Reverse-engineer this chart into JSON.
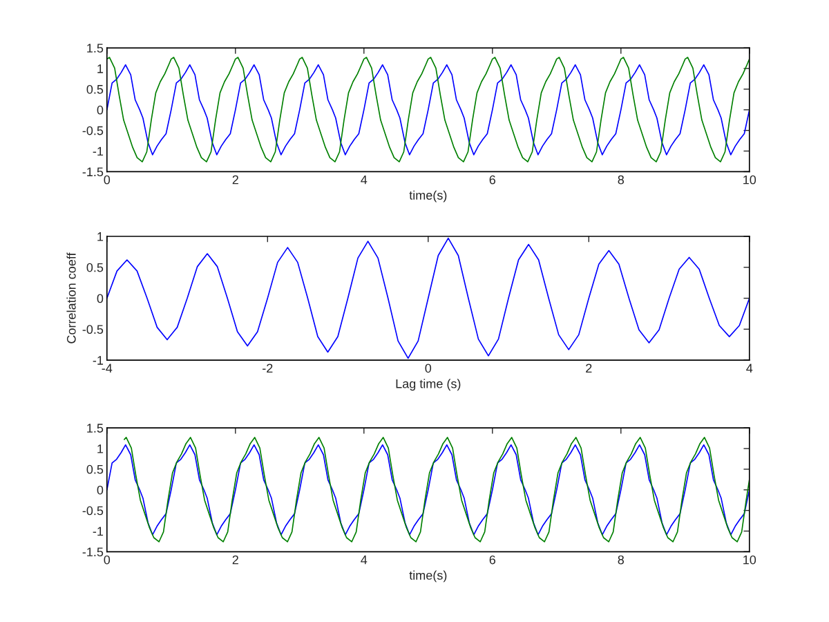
{
  "chart_data": [
    {
      "type": "line",
      "xlabel": "time(s)",
      "xlim": [
        0,
        10
      ],
      "ylim": [
        -1.5,
        1.5
      ],
      "xticks": [
        0,
        2,
        4,
        6,
        8,
        10
      ],
      "yticks": [
        -1.5,
        -1,
        -0.5,
        0,
        0.5,
        1,
        1.5
      ],
      "series": [
        {
          "color": "#0000ff",
          "x": [
            0,
            0.08,
            0.15,
            0.22,
            0.29,
            0.37,
            0.44,
            0.51,
            0.56,
            0.64,
            0.71,
            0.78,
            0.85,
            0.92,
            1,
            1.08,
            1.15,
            1.22,
            1.29,
            1.37,
            1.44,
            1.51,
            1.56,
            1.64,
            1.71,
            1.78,
            1.85,
            1.92,
            2,
            2.08,
            2.15,
            2.22,
            2.29,
            2.37,
            2.44,
            2.51,
            2.56,
            2.64,
            2.71,
            2.78,
            2.85,
            2.92,
            3,
            3.08,
            3.15,
            3.22,
            3.29,
            3.37,
            3.44,
            3.51,
            3.56,
            3.64,
            3.71,
            3.78,
            3.85,
            3.92,
            4,
            4.08,
            4.15,
            4.22,
            4.29,
            4.37,
            4.44,
            4.51,
            4.56,
            4.64,
            4.71,
            4.78,
            4.85,
            4.92,
            5,
            5.08,
            5.15,
            5.22,
            5.29,
            5.37,
            5.44,
            5.51,
            5.56,
            5.64,
            5.71,
            5.78,
            5.85,
            5.92,
            6,
            6.08,
            6.15,
            6.22,
            6.29,
            6.37,
            6.44,
            6.51,
            6.56,
            6.64,
            6.71,
            6.78,
            6.85,
            6.92,
            7,
            7.08,
            7.15,
            7.22,
            7.29,
            7.37,
            7.44,
            7.51,
            7.56,
            7.64,
            7.71,
            7.78,
            7.85,
            7.92,
            8,
            8.08,
            8.15,
            8.22,
            8.29,
            8.37,
            8.44,
            8.51,
            8.56,
            8.64,
            8.71,
            8.78,
            8.85,
            8.92,
            9,
            9.08,
            9.15,
            9.22,
            9.29,
            9.37,
            9.44,
            9.51,
            9.56,
            9.64,
            9.71,
            9.78,
            9.85,
            9.92,
            10
          ],
          "values": [
            0,
            0.65,
            0.74,
            0.9,
            1.09,
            0.85,
            0.24,
            0,
            -0.2,
            -0.8,
            -1.09,
            -0.88,
            -0.72,
            -0.58,
            0,
            0.65,
            0.74,
            0.9,
            1.09,
            0.85,
            0.24,
            0,
            -0.2,
            -0.8,
            -1.09,
            -0.88,
            -0.72,
            -0.58,
            0,
            0.65,
            0.74,
            0.9,
            1.09,
            0.85,
            0.24,
            0,
            -0.2,
            -0.8,
            -1.09,
            -0.88,
            -0.72,
            -0.58,
            0,
            0.65,
            0.74,
            0.9,
            1.09,
            0.85,
            0.24,
            0,
            -0.2,
            -0.8,
            -1.09,
            -0.88,
            -0.72,
            -0.58,
            0,
            0.65,
            0.74,
            0.9,
            1.09,
            0.85,
            0.24,
            0,
            -0.2,
            -0.8,
            -1.09,
            -0.88,
            -0.72,
            -0.58,
            0,
            0.65,
            0.74,
            0.9,
            1.09,
            0.85,
            0.24,
            0,
            -0.2,
            -0.8,
            -1.09,
            -0.88,
            -0.72,
            -0.58,
            0,
            0.65,
            0.74,
            0.9,
            1.09,
            0.85,
            0.24,
            0,
            -0.2,
            -0.8,
            -1.09,
            -0.88,
            -0.72,
            -0.58,
            0,
            0.65,
            0.74,
            0.9,
            1.09,
            0.85,
            0.24,
            0,
            -0.2,
            -0.8,
            -1.09,
            -0.88,
            -0.72,
            -0.58,
            0,
            0.65,
            0.74,
            0.9,
            1.09,
            0.85,
            0.24,
            0,
            -0.2,
            -0.8,
            -1.09,
            -0.88,
            -0.72,
            -0.58,
            0,
            0.65,
            0.74,
            0.9,
            1.09,
            0.85,
            0.24,
            0,
            -0.2,
            -0.8,
            -1.09,
            -0.88,
            -0.72,
            -0.58,
            0
          ]
        },
        {
          "color": "#008000",
          "x": [
            0,
            0.04,
            0.12,
            0.19,
            0.26,
            0.33,
            0.4,
            0.47,
            0.55,
            0.62,
            0.69,
            0.76,
            0.83,
            0.9,
            0.97,
            1,
            1.04,
            1.12,
            1.19,
            1.26,
            1.33,
            1.4,
            1.47,
            1.55,
            1.62,
            1.69,
            1.76,
            1.83,
            1.9,
            1.97,
            2,
            2.04,
            2.12,
            2.19,
            2.26,
            2.33,
            2.4,
            2.47,
            2.55,
            2.62,
            2.69,
            2.76,
            2.83,
            2.9,
            2.97,
            3,
            3.04,
            3.12,
            3.19,
            3.26,
            3.33,
            3.4,
            3.47,
            3.55,
            3.62,
            3.69,
            3.76,
            3.83,
            3.9,
            3.97,
            4,
            4.04,
            4.12,
            4.19,
            4.26,
            4.33,
            4.4,
            4.47,
            4.55,
            4.62,
            4.69,
            4.76,
            4.83,
            4.9,
            4.97,
            5,
            5.04,
            5.12,
            5.19,
            5.26,
            5.33,
            5.4,
            5.47,
            5.55,
            5.62,
            5.69,
            5.76,
            5.83,
            5.9,
            5.97,
            6,
            6.04,
            6.12,
            6.19,
            6.26,
            6.33,
            6.4,
            6.47,
            6.55,
            6.62,
            6.69,
            6.76,
            6.83,
            6.9,
            6.97,
            7,
            7.04,
            7.12,
            7.19,
            7.26,
            7.33,
            7.4,
            7.47,
            7.55,
            7.62,
            7.69,
            7.76,
            7.83,
            7.9,
            7.97,
            8,
            8.04,
            8.12,
            8.19,
            8.26,
            8.33,
            8.4,
            8.47,
            8.55,
            8.62,
            8.69,
            8.76,
            8.83,
            8.9,
            8.97,
            9,
            9.04,
            9.12,
            9.19,
            9.26,
            9.33,
            9.4,
            9.47,
            9.55,
            9.62,
            9.69,
            9.76,
            9.83,
            9.9,
            9.97,
            10
          ],
          "values": [
            1.23,
            1.27,
            1.01,
            0.35,
            -0.25,
            -0.58,
            -0.91,
            -1.16,
            -1.26,
            -1.02,
            -0.25,
            0.41,
            0.68,
            0.87,
            1.12,
            1.23,
            1.27,
            1.01,
            0.35,
            -0.25,
            -0.58,
            -0.91,
            -1.16,
            -1.26,
            -1.02,
            -0.25,
            0.41,
            0.68,
            0.87,
            1.12,
            1.23,
            1.27,
            1.01,
            0.35,
            -0.25,
            -0.58,
            -0.91,
            -1.16,
            -1.26,
            -1.02,
            -0.25,
            0.41,
            0.68,
            0.87,
            1.12,
            1.23,
            1.27,
            1.01,
            0.35,
            -0.25,
            -0.58,
            -0.91,
            -1.16,
            -1.26,
            -1.02,
            -0.25,
            0.41,
            0.68,
            0.87,
            1.12,
            1.23,
            1.27,
            1.01,
            0.35,
            -0.25,
            -0.58,
            -0.91,
            -1.16,
            -1.26,
            -1.02,
            -0.25,
            0.41,
            0.68,
            0.87,
            1.12,
            1.23,
            1.27,
            1.01,
            0.35,
            -0.25,
            -0.58,
            -0.91,
            -1.16,
            -1.26,
            -1.02,
            -0.25,
            0.41,
            0.68,
            0.87,
            1.12,
            1.23,
            1.27,
            1.01,
            0.35,
            -0.25,
            -0.58,
            -0.91,
            -1.16,
            -1.26,
            -1.02,
            -0.25,
            0.41,
            0.68,
            0.87,
            1.12,
            1.23,
            1.27,
            1.01,
            0.35,
            -0.25,
            -0.58,
            -0.91,
            -1.16,
            -1.26,
            -1.02,
            -0.25,
            0.41,
            0.68,
            0.87,
            1.12,
            1.23,
            1.27,
            1.01,
            0.35,
            -0.25,
            -0.58,
            -0.91,
            -1.16,
            -1.26,
            -1.02,
            -0.25,
            0.41,
            0.68,
            0.87,
            1.12,
            1.23,
            1.27,
            1.01,
            0.35,
            -0.25,
            -0.58,
            -0.91,
            -1.16,
            -1.26,
            -1.02,
            -0.25,
            0.41,
            0.68,
            0.87,
            1.12,
            1.23
          ]
        }
      ]
    },
    {
      "type": "line",
      "xlabel": "Lag time (s)",
      "ylabel": "Correlation coeff",
      "xlim": [
        -4,
        4
      ],
      "ylim": [
        -1,
        1
      ],
      "xticks": [
        -4,
        -2,
        0,
        2,
        4
      ],
      "yticks": [
        -1,
        -0.5,
        0,
        0.5,
        1
      ],
      "series": [
        {
          "color": "#0000ff",
          "x": [
            -4,
            -3.875,
            -3.75,
            -3.625,
            -3.5,
            -3.375,
            -3.25,
            -3.125,
            -3,
            -2.875,
            -2.75,
            -2.625,
            -2.5,
            -2.375,
            -2.25,
            -2.125,
            -2,
            -1.875,
            -1.75,
            -1.625,
            -1.5,
            -1.375,
            -1.25,
            -1.125,
            -1,
            -0.875,
            -0.75,
            -0.625,
            -0.5,
            -0.375,
            -0.25,
            -0.125,
            0,
            0.125,
            0.25,
            0.375,
            0.5,
            0.625,
            0.75,
            0.875,
            1,
            1.125,
            1.25,
            1.375,
            1.5,
            1.625,
            1.75,
            1.875,
            2,
            2.125,
            2.25,
            2.375,
            2.5,
            2.625,
            2.75,
            2.875,
            3,
            3.125,
            3.25,
            3.375,
            3.5,
            3.625,
            3.75,
            3.875,
            4
          ],
          "values": [
            0,
            0.44,
            0.62,
            0.44,
            0,
            -0.47,
            -0.67,
            -0.47,
            0,
            0.51,
            0.72,
            0.51,
            0,
            -0.54,
            -0.77,
            -0.54,
            0,
            0.58,
            0.82,
            0.58,
            0,
            -0.62,
            -0.87,
            -0.62,
            0,
            0.65,
            0.92,
            0.65,
            0,
            -0.69,
            -0.97,
            -0.69,
            0,
            0.69,
            0.97,
            0.69,
            0,
            -0.66,
            -0.93,
            -0.66,
            0,
            0.62,
            0.87,
            0.62,
            0,
            -0.59,
            -0.83,
            -0.59,
            0,
            0.55,
            0.77,
            0.55,
            0,
            -0.51,
            -0.72,
            -0.51,
            0,
            0.47,
            0.66,
            0.47,
            0,
            -0.44,
            -0.62,
            -0.44,
            0
          ]
        }
      ]
    },
    {
      "type": "line",
      "xlabel": "time(s)",
      "xlim": [
        0,
        10
      ],
      "ylim": [
        -1.5,
        1.5
      ],
      "xticks": [
        0,
        2,
        4,
        6,
        8,
        10
      ],
      "yticks": [
        -1.5,
        -1,
        -0.5,
        0,
        0.5,
        1,
        1.5
      ],
      "series": [
        {
          "color": "#0000ff",
          "x": [
            0,
            0.08,
            0.15,
            0.22,
            0.29,
            0.37,
            0.44,
            0.51,
            0.56,
            0.64,
            0.71,
            0.78,
            0.85,
            0.92,
            1,
            1.08,
            1.15,
            1.22,
            1.29,
            1.37,
            1.44,
            1.51,
            1.56,
            1.64,
            1.71,
            1.78,
            1.85,
            1.92,
            2,
            2.08,
            2.15,
            2.22,
            2.29,
            2.37,
            2.44,
            2.51,
            2.56,
            2.64,
            2.71,
            2.78,
            2.85,
            2.92,
            3,
            3.08,
            3.15,
            3.22,
            3.29,
            3.37,
            3.44,
            3.51,
            3.56,
            3.64,
            3.71,
            3.78,
            3.85,
            3.92,
            4,
            4.08,
            4.15,
            4.22,
            4.29,
            4.37,
            4.44,
            4.51,
            4.56,
            4.64,
            4.71,
            4.78,
            4.85,
            4.92,
            5,
            5.08,
            5.15,
            5.22,
            5.29,
            5.37,
            5.44,
            5.51,
            5.56,
            5.64,
            5.71,
            5.78,
            5.85,
            5.92,
            6,
            6.08,
            6.15,
            6.22,
            6.29,
            6.37,
            6.44,
            6.51,
            6.56,
            6.64,
            6.71,
            6.78,
            6.85,
            6.92,
            7,
            7.08,
            7.15,
            7.22,
            7.29,
            7.37,
            7.44,
            7.51,
            7.56,
            7.64,
            7.71,
            7.78,
            7.85,
            7.92,
            8,
            8.08,
            8.15,
            8.22,
            8.29,
            8.37,
            8.44,
            8.51,
            8.56,
            8.64,
            8.71,
            8.78,
            8.85,
            8.92,
            9,
            9.08,
            9.15,
            9.22,
            9.29,
            9.37,
            9.44,
            9.51,
            9.56,
            9.64,
            9.71,
            9.78,
            9.85,
            9.92,
            10
          ],
          "values": [
            0,
            0.65,
            0.74,
            0.9,
            1.09,
            0.85,
            0.24,
            0,
            -0.2,
            -0.8,
            -1.09,
            -0.88,
            -0.72,
            -0.58,
            0,
            0.65,
            0.74,
            0.9,
            1.09,
            0.85,
            0.24,
            0,
            -0.2,
            -0.8,
            -1.09,
            -0.88,
            -0.72,
            -0.58,
            0,
            0.65,
            0.74,
            0.9,
            1.09,
            0.85,
            0.24,
            0,
            -0.2,
            -0.8,
            -1.09,
            -0.88,
            -0.72,
            -0.58,
            0,
            0.65,
            0.74,
            0.9,
            1.09,
            0.85,
            0.24,
            0,
            -0.2,
            -0.8,
            -1.09,
            -0.88,
            -0.72,
            -0.58,
            0,
            0.65,
            0.74,
            0.9,
            1.09,
            0.85,
            0.24,
            0,
            -0.2,
            -0.8,
            -1.09,
            -0.88,
            -0.72,
            -0.58,
            0,
            0.65,
            0.74,
            0.9,
            1.09,
            0.85,
            0.24,
            0,
            -0.2,
            -0.8,
            -1.09,
            -0.88,
            -0.72,
            -0.58,
            0,
            0.65,
            0.74,
            0.9,
            1.09,
            0.85,
            0.24,
            0,
            -0.2,
            -0.8,
            -1.09,
            -0.88,
            -0.72,
            -0.58,
            0,
            0.65,
            0.74,
            0.9,
            1.09,
            0.85,
            0.24,
            0,
            -0.2,
            -0.8,
            -1.09,
            -0.88,
            -0.72,
            -0.58,
            0,
            0.65,
            0.74,
            0.9,
            1.09,
            0.85,
            0.24,
            0,
            -0.2,
            -0.8,
            -1.09,
            -0.88,
            -0.72,
            -0.58,
            0,
            0.65,
            0.74,
            0.9,
            1.09,
            0.85,
            0.24,
            0,
            -0.2,
            -0.8,
            -1.09,
            -0.88,
            -0.72,
            -0.58,
            0
          ]
        },
        {
          "color": "#008000",
          "x": [
            0.27,
            0.3,
            0.38,
            0.45,
            0.52,
            0.59,
            0.66,
            0.73,
            0.81,
            0.88,
            0.95,
            1.02,
            1.09,
            1.16,
            1.23,
            1.3,
            1.38,
            1.45,
            1.52,
            1.59,
            1.66,
            1.73,
            1.81,
            1.88,
            1.95,
            2.02,
            2.09,
            2.16,
            2.23,
            2.3,
            2.38,
            2.45,
            2.52,
            2.59,
            2.66,
            2.73,
            2.81,
            2.88,
            2.95,
            3.02,
            3.09,
            3.16,
            3.23,
            3.3,
            3.38,
            3.45,
            3.52,
            3.59,
            3.66,
            3.73,
            3.81,
            3.88,
            3.95,
            4.02,
            4.09,
            4.16,
            4.23,
            4.3,
            4.38,
            4.45,
            4.52,
            4.59,
            4.66,
            4.73,
            4.81,
            4.88,
            4.95,
            5.02,
            5.09,
            5.16,
            5.23,
            5.3,
            5.38,
            5.45,
            5.52,
            5.59,
            5.66,
            5.73,
            5.81,
            5.88,
            5.95,
            6.02,
            6.09,
            6.16,
            6.23,
            6.3,
            6.38,
            6.45,
            6.52,
            6.59,
            6.66,
            6.73,
            6.81,
            6.88,
            6.95,
            7.02,
            7.09,
            7.16,
            7.23,
            7.3,
            7.38,
            7.45,
            7.52,
            7.59,
            7.66,
            7.73,
            7.81,
            7.88,
            7.95,
            8.02,
            8.09,
            8.16,
            8.23,
            8.3,
            8.38,
            8.45,
            8.52,
            8.59,
            8.66,
            8.73,
            8.81,
            8.88,
            8.95,
            9.02,
            9.09,
            9.16,
            9.23,
            9.3,
            9.38,
            9.45,
            9.52,
            9.59,
            9.66,
            9.73,
            9.81,
            9.88,
            9.95,
            10
          ],
          "values": [
            1.22,
            1.27,
            1.01,
            0.35,
            -0.25,
            -0.58,
            -0.91,
            -1.16,
            -1.26,
            -1.02,
            -0.25,
            0.41,
            0.68,
            0.87,
            1.12,
            1.27,
            1.01,
            0.35,
            -0.25,
            -0.58,
            -0.91,
            -1.16,
            -1.26,
            -1.02,
            -0.25,
            0.41,
            0.68,
            0.87,
            1.12,
            1.27,
            1.01,
            0.35,
            -0.25,
            -0.58,
            -0.91,
            -1.16,
            -1.26,
            -1.02,
            -0.25,
            0.41,
            0.68,
            0.87,
            1.12,
            1.27,
            1.01,
            0.35,
            -0.25,
            -0.58,
            -0.91,
            -1.16,
            -1.26,
            -1.02,
            -0.25,
            0.41,
            0.68,
            0.87,
            1.12,
            1.27,
            1.01,
            0.35,
            -0.25,
            -0.58,
            -0.91,
            -1.16,
            -1.26,
            -1.02,
            -0.25,
            0.41,
            0.68,
            0.87,
            1.12,
            1.27,
            1.01,
            0.35,
            -0.25,
            -0.58,
            -0.91,
            -1.16,
            -1.26,
            -1.02,
            -0.25,
            0.41,
            0.68,
            0.87,
            1.12,
            1.27,
            1.01,
            0.35,
            -0.25,
            -0.58,
            -0.91,
            -1.16,
            -1.26,
            -1.02,
            -0.25,
            0.41,
            0.68,
            0.87,
            1.12,
            1.27,
            1.01,
            0.35,
            -0.25,
            -0.58,
            -0.91,
            -1.16,
            -1.26,
            -1.02,
            -0.25,
            0.41,
            0.68,
            0.87,
            1.12,
            1.27,
            1.01,
            0.35,
            -0.25,
            -0.58,
            -0.91,
            -1.16,
            -1.26,
            -1.02,
            -0.25,
            0.41,
            0.68,
            0.87,
            1.12,
            1.27,
            1.01,
            0.35,
            -0.25,
            -0.58,
            -0.91,
            -1.16,
            -1.26,
            -1.02,
            -0.25,
            0.25
          ]
        }
      ]
    }
  ]
}
